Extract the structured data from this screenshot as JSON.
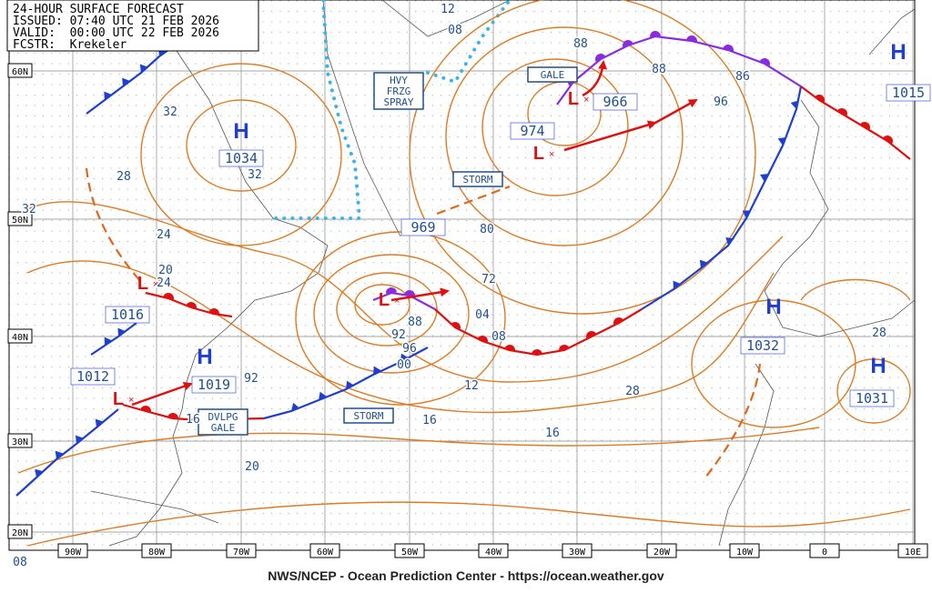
{
  "header": {
    "title": "24-HOUR SURFACE FORECAST",
    "issued": "ISSUED: 07:40 UTC 21 FEB 2026",
    "valid": "VALID:  00:00 UTC 22 FEB 2026",
    "forecaster": "FCSTR:  Krekeler"
  },
  "latitudes": [
    "60N",
    "50N",
    "40N",
    "30N",
    "20N"
  ],
  "longitudes": [
    "90W",
    "80W",
    "70W",
    "60W",
    "50W",
    "40W",
    "30W",
    "20W",
    "10W",
    "0",
    "10E"
  ],
  "pressure_centers": [
    {
      "symbol": "H",
      "pressure": 1034
    },
    {
      "symbol": "H",
      "pressure": 1019
    },
    {
      "symbol": "H",
      "pressure": 1032
    },
    {
      "symbol": "H",
      "pressure": 1031
    },
    {
      "symbol": "H",
      "pressure": 1015
    },
    {
      "symbol": "L",
      "pressure": 1016
    },
    {
      "symbol": "L",
      "pressure": 969
    },
    {
      "symbol": "L",
      "pressure": 974
    },
    {
      "symbol": "L",
      "pressure": 966
    },
    {
      "symbol": "L",
      "pressure": 1012
    }
  ],
  "warnings": [
    {
      "lines": [
        "HVY",
        "FRZG",
        "SPRAY"
      ]
    },
    {
      "lines": [
        "GALE"
      ]
    },
    {
      "lines": [
        "STORM"
      ]
    },
    {
      "lines": [
        "STORM"
      ]
    },
    {
      "lines": [
        "DVLPG",
        "GALE"
      ]
    }
  ],
  "isobar_labels": [
    "12",
    "08",
    "88",
    "86",
    "88",
    "96",
    "32",
    "32",
    "28",
    "24",
    "20",
    "80",
    "72",
    "04",
    "08",
    "12",
    "16",
    "92",
    "88",
    "92",
    "96",
    "00",
    "28",
    "24",
    "20",
    "16",
    "28",
    "16",
    "08",
    "32"
  ],
  "footer": "NWS/NCEP - Ocean Prediction Center - https://ocean.weather.gov"
}
